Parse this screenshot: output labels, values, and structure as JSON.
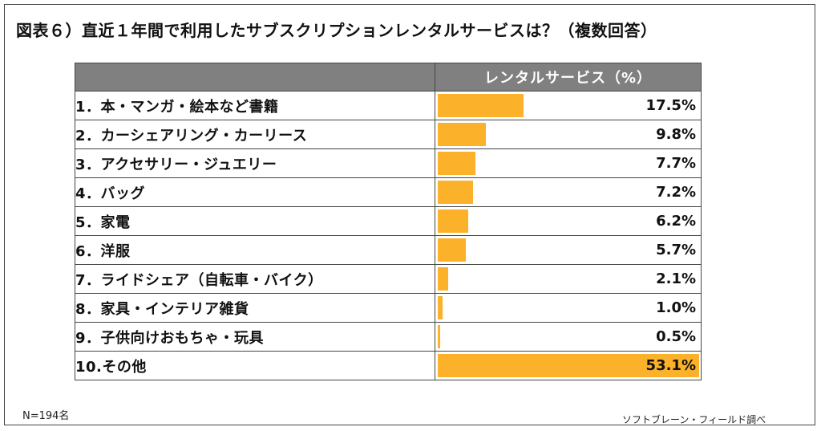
{
  "title": "図表６）直近１年間で利用したサブスクリプションレンタルサービスは？（複数回答）",
  "colors": {
    "bar": "#FBB22A",
    "header": "#808080"
  },
  "chart_data": {
    "type": "bar",
    "orientation": "horizontal",
    "title": "図表６）直近１年間で利用したサブスクリプションレンタルサービスは？（複数回答）",
    "header_label": "",
    "value_header": "レンタルサービス（%）",
    "categories": [
      "1．本・マンガ・絵本など書籍",
      "2．カーシェアリング・カーリース",
      "3．アクセサリー・ジュエリー",
      "4．バッグ",
      "5．家電",
      "6．洋服",
      "7．ライドシェア（自転車・バイク）",
      "8．家具・インテリア雑貨",
      "9．子供向けおもちゃ・玩具",
      "10.その他"
    ],
    "values": [
      17.5,
      9.8,
      7.7,
      7.2,
      6.2,
      5.7,
      2.1,
      1.0,
      0.5,
      53.1
    ],
    "value_labels": [
      "17.5%",
      "9.8%",
      "7.7%",
      "7.2%",
      "6.2%",
      "5.7%",
      "2.1%",
      "1.0%",
      "0.5%",
      "53.1%"
    ],
    "xlim": [
      0,
      53.1
    ]
  },
  "footnote_left": "N=194名",
  "footnote_right": "ソフトブレーン・フィールド調べ"
}
